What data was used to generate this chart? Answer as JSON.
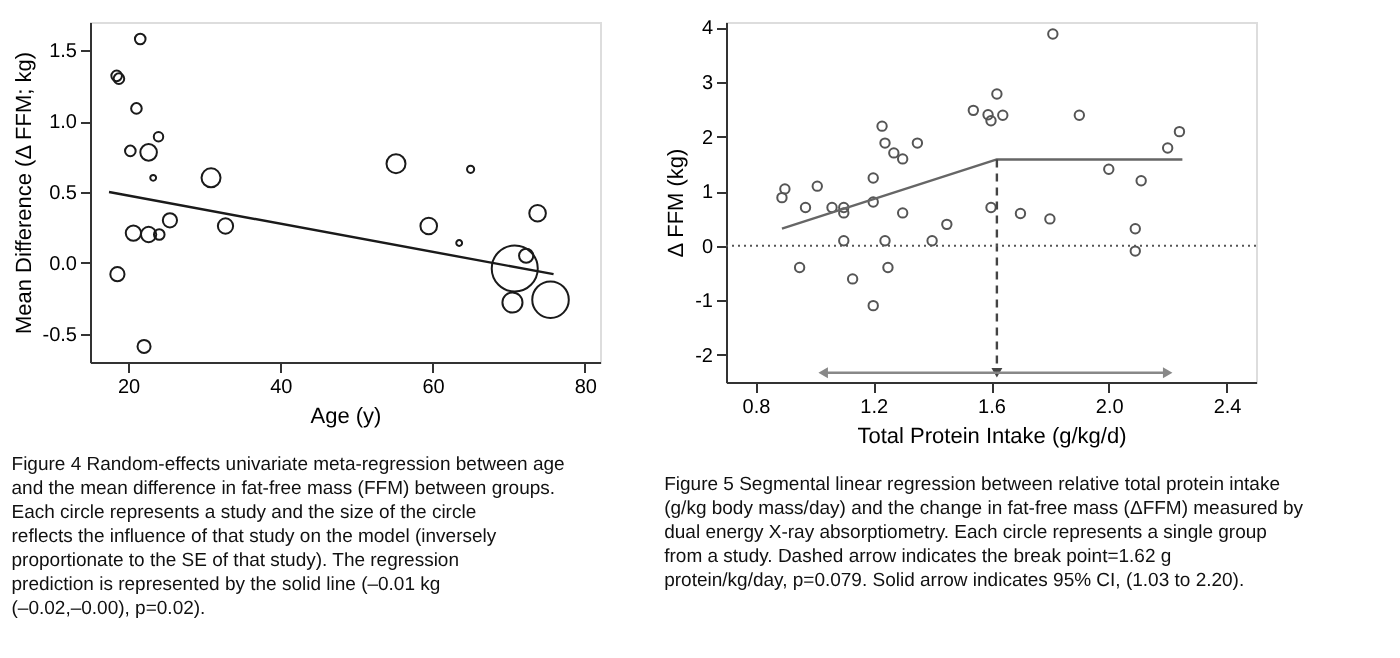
{
  "chart_data": [
    {
      "type": "bubble",
      "xlabel": "Age (y)",
      "ylabel": "Mean Difference (Δ FFM; kg)",
      "xlim": [
        15,
        82
      ],
      "ylim": [
        -0.7,
        1.7
      ],
      "xticks": [
        20,
        40,
        60,
        80
      ],
      "yticks": [
        {
          "value": -0.5,
          "label": "-0.5"
        },
        {
          "value": 0,
          "label": "0.0"
        },
        {
          "value": 0.5,
          "label": "0.5"
        },
        {
          "value": 1,
          "label": "1.0"
        },
        {
          "value": 1.5,
          "label": "1.5"
        }
      ],
      "grid": false,
      "legend": false,
      "series": [
        {
          "color": "#1a1a1a",
          "x": [
            21.6,
            18.5,
            18.8,
            21.1,
            20.3,
            22.7,
            24.0,
            23.3,
            30.9,
            20.7,
            22.7,
            24.1,
            25.5,
            32.8,
            18.6,
            22.1,
            55.2,
            59.5,
            63.5,
            65.0,
            73.8,
            72.3,
            70.8,
            70.5,
            75.5
          ],
          "values": [
            1.58,
            1.32,
            1.3,
            1.09,
            0.79,
            0.78,
            0.89,
            0.6,
            0.6,
            0.21,
            0.2,
            0.2,
            0.3,
            0.26,
            -0.08,
            -0.59,
            0.7,
            0.26,
            0.14,
            0.66,
            0.35,
            0.05,
            -0.04,
            -0.28,
            -0.26
          ],
          "sizes": [
            0.053,
            0.053,
            0.053,
            0.053,
            0.053,
            0.13,
            0.042,
            0.016,
            0.17,
            0.11,
            0.11,
            0.053,
            0.095,
            0.11,
            0.095,
            0.08,
            0.17,
            0.13,
            0.016,
            0.024,
            0.13,
            0.095,
            1,
            0.19,
            0.63
          ]
        },
        {
          "type": "line",
          "color": "#1a1a1a",
          "line_style": "solid",
          "x": [
            17.5,
            75.9
          ],
          "values": [
            0.5,
            -0.08
          ]
        }
      ],
      "annotations": [
        "Figure 4 Random-effects univariate meta-regression between age and the mean difference in fat-free mass (FFM) between groups. Each circle represents a study and the size of the circle reflects the influence of that study on the model (inversely proportionate to the SE of that study). The regression prediction is represented by the solid line (–0.01 kg (–0.02,–0.00), p=0.02)."
      ]
    },
    {
      "type": "scatter",
      "xlabel": "Total Protein Intake (g/kg/d)",
      "ylabel": "Δ FFM (kg)",
      "xlim": [
        0.7,
        2.5
      ],
      "ylim": [
        -2.5,
        4.1
      ],
      "xticks": [
        0.8,
        1.2,
        1.6,
        {
          "value": 2,
          "label": "2.0"
        },
        2.4
      ],
      "yticks": [
        -2,
        -1,
        0,
        1,
        2,
        3,
        4
      ],
      "grid": false,
      "legend": false,
      "ref_lines": [
        {
          "axis": "y",
          "value": 0,
          "color": "#555555",
          "line_style": "dotted"
        }
      ],
      "series": [
        {
          "color": "#555555",
          "marker": "circle",
          "x": [
            0.89,
            0.9,
            0.97,
            1.01,
            1.06,
            1.1,
            1.1,
            0.95,
            1.1,
            1.13,
            1.2,
            1.2,
            1.23,
            1.24,
            1.27,
            1.3,
            1.3,
            1.24,
            1.25,
            1.2,
            1.35,
            1.4,
            1.45,
            1.54,
            1.59,
            1.6,
            1.62,
            1.64,
            1.6,
            1.7,
            1.8,
            1.81,
            1.9,
            2.0,
            2.11,
            2.09,
            2.09,
            2.2,
            2.24
          ],
          "values": [
            0.88,
            1.04,
            0.7,
            1.09,
            0.7,
            0.7,
            0.6,
            -0.4,
            0.09,
            -0.61,
            1.24,
            0.8,
            2.19,
            1.88,
            1.7,
            1.59,
            0.6,
            0.09,
            -0.4,
            -1.1,
            1.88,
            0.09,
            0.39,
            2.48,
            2.4,
            2.29,
            2.78,
            2.39,
            0.7,
            0.59,
            0.49,
            3.88,
            2.39,
            1.4,
            1.19,
            0.31,
            -0.1,
            1.79,
            2.09
          ]
        },
        {
          "type": "line",
          "color": "#666666",
          "line_style": "solid",
          "x": [
            0.89,
            1.62,
            2.25
          ],
          "values": [
            0.31,
            1.58,
            1.58
          ]
        },
        {
          "type": "line",
          "color": "#444444",
          "line_style": "dashed",
          "marker": "triangle",
          "x": [
            1.62,
            1.62
          ],
          "values": [
            1.58,
            -2.33
          ]
        },
        {
          "type": "line",
          "color": "#888888",
          "line_style": "solid",
          "marker": "triangle",
          "x": [
            1.62,
            1.03
          ],
          "values": [
            -2.33,
            -2.33
          ]
        },
        {
          "type": "line",
          "color": "#888888",
          "line_style": "solid",
          "marker": "triangle",
          "x": [
            1.62,
            2.2
          ],
          "values": [
            -2.33,
            -2.33
          ]
        }
      ],
      "annotations": [
        "Figure 5 Segmental linear regression between relative total protein intake (g/kg body mass/day) and the change in fat-free mass (ΔFFM) measured by dual energy X-ray absorptiometry. Each circle represents a single group from a study. Dashed arrow indicates the break point=1.62 g protein/kg/day, p=0.079. Solid arrow indicates 95% CI, (1.03 to 2.20)."
      ]
    }
  ]
}
